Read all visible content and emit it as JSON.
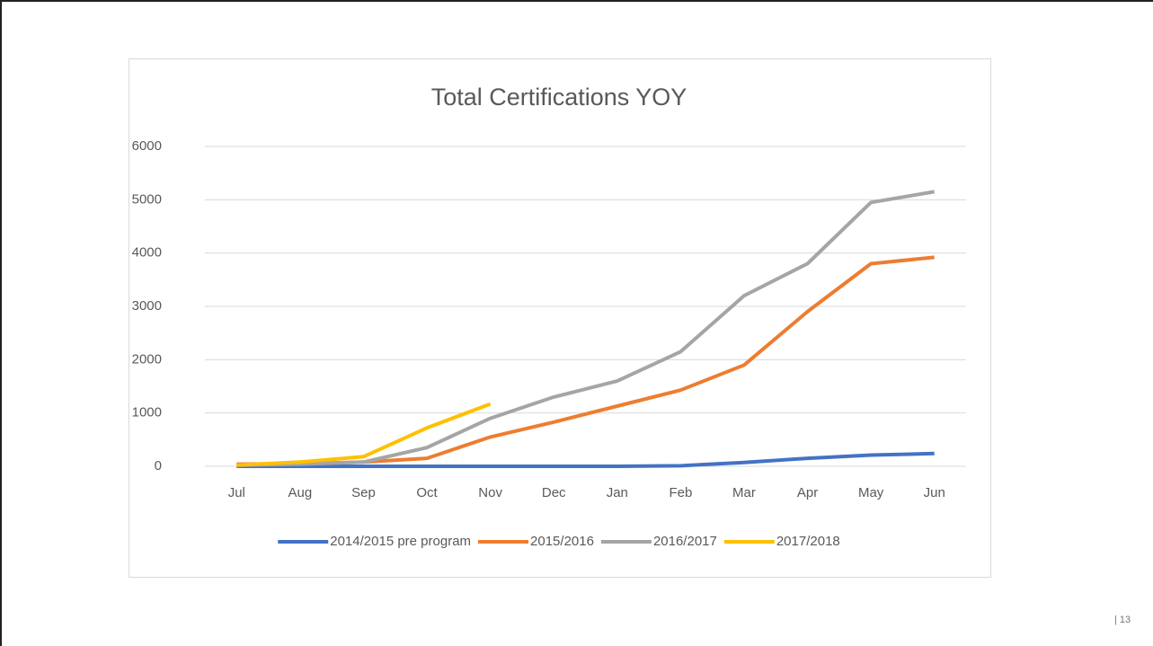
{
  "page_number": "| 13",
  "chart_data": {
    "type": "line",
    "title": "Total Certifications YOY",
    "categories": [
      "Jul",
      "Aug",
      "Sep",
      "Oct",
      "Nov",
      "Dec",
      "Jan",
      "Feb",
      "Mar",
      "Apr",
      "May",
      "Jun"
    ],
    "series": [
      {
        "name": "2014/2015 pre program",
        "color": "#4472c4",
        "values": [
          0,
          0,
          0,
          0,
          0,
          0,
          0,
          10,
          70,
          150,
          210,
          240
        ]
      },
      {
        "name": "2015/2016",
        "color": "#ed7d31",
        "values": [
          40,
          50,
          80,
          150,
          550,
          830,
          1130,
          1430,
          1900,
          2900,
          3800,
          3920
        ]
      },
      {
        "name": "2016/2017",
        "color": "#a5a5a5",
        "values": [
          20,
          40,
          80,
          350,
          900,
          1300,
          1600,
          2150,
          3200,
          3800,
          4950,
          5150
        ]
      },
      {
        "name": "2017/2018",
        "color": "#ffc000",
        "values": [
          20,
          80,
          180,
          720,
          1170,
          null,
          null,
          null,
          null,
          null,
          null,
          null
        ]
      }
    ],
    "ylim": [
      0,
      6000
    ],
    "yticks": [
      0,
      1000,
      2000,
      3000,
      4000,
      5000,
      6000
    ],
    "grid": true,
    "legend": "bottom"
  }
}
